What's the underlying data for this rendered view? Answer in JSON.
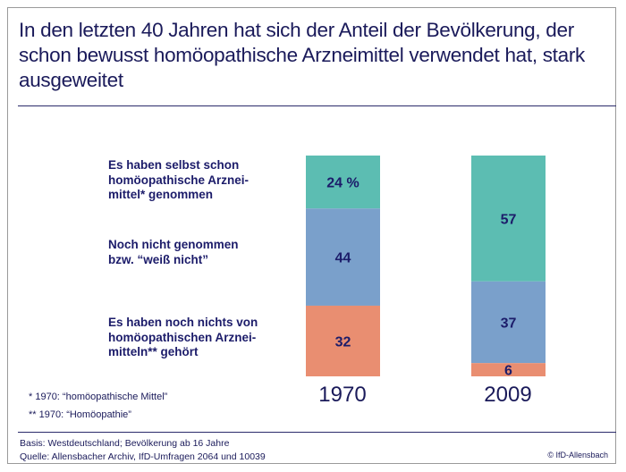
{
  "title": "In den letzten 40 Jahren hat sich der Anteil der Bevölkerung, der schon bewusst homöopathische Arzneimittel verwendet hat, stark ausgeweitet",
  "chart_data": {
    "type": "bar",
    "stacked": true,
    "title": "In den letzten 40 Jahren hat sich der Anteil der Bevölkerung, der schon bewusst homöopathische Arzneimittel verwendet hat, stark ausgeweitet",
    "categories": [
      "1970",
      "2009"
    ],
    "unit": "%",
    "ylim": [
      0,
      100
    ],
    "grid": false,
    "series": [
      {
        "name": "Es haben selbst schon homöopathische Arznei-\nmittel* genommen",
        "values": [
          24,
          57
        ],
        "color": "#5cbdb2",
        "labels": [
          "24 %",
          "57"
        ]
      },
      {
        "name": "Noch nicht genommen\nbzw. “weiß nicht”",
        "values": [
          44,
          37
        ],
        "color": "#7aa0cb",
        "labels": [
          "44",
          "37"
        ]
      },
      {
        "name": "Es haben noch nichts von homöopathischen Arznei-\nmitteln** gehört",
        "values": [
          32,
          6
        ],
        "color": "#e98e71",
        "labels": [
          "32",
          "6"
        ]
      }
    ]
  },
  "legend_labels": [
    "Es haben selbst schon\nhomöopathische Arznei-\nmittel* genommen",
    "Noch nicht genommen\nbzw. “weiß nicht”",
    "Es haben noch nichts von\nhomöopathischen Arznei-\nmitteln** gehört"
  ],
  "notes": [
    "* 1970: “homöopathische Mittel”",
    "** 1970: “Homöopathie”"
  ],
  "footer": {
    "basis": "Basis: Westdeutschland; Bevölkerung ab 16 Jahre",
    "source": "Quelle: Allensbacher Archiv, IfD-Umfragen 2064 und 10039",
    "copyright": "© IfD-Allensbach"
  }
}
